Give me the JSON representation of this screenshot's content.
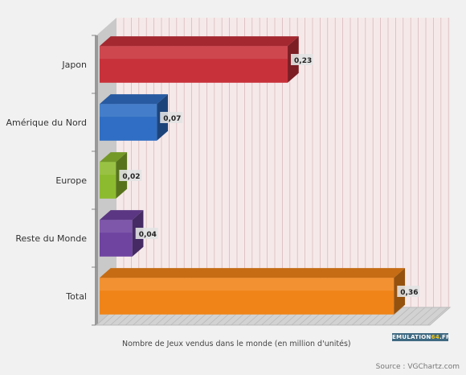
{
  "chart_data": {
    "type": "bar",
    "orientation": "horizontal",
    "categories": [
      "Japon",
      "Amérique du Nord",
      "Europe",
      "Reste du Monde",
      "Total"
    ],
    "values": [
      0.23,
      0.07,
      0.02,
      0.04,
      0.36
    ],
    "value_labels": [
      "0,23",
      "0,07",
      "0,02",
      "0,04",
      "0,36"
    ],
    "xlabel": "Nombre de Jeux vendus dans le monde (en million d'unités)",
    "xlim": [
      0,
      0.4
    ],
    "grid": true,
    "style": "3d",
    "colors": [
      "#c8313a",
      "#2f6ec4",
      "#8dbb2f",
      "#6f43a0",
      "#f08418"
    ]
  },
  "source": "Source : VGChartz.com",
  "logo": {
    "part1": "EMULATION",
    "part2": "64",
    "part3": ".FR"
  }
}
